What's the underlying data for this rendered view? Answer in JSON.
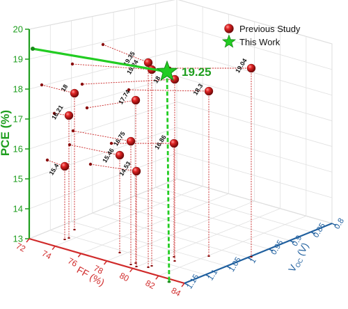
{
  "chart_data": {
    "type": "scatter3d",
    "colors": {
      "previous": "#c81e1e",
      "this_work": "#22cc22",
      "z_axis": "#1e9e1e",
      "x_axis": "#d02a2a",
      "y_axis": "#1f5f9e"
    },
    "z_axis": {
      "label": "PCE (%)",
      "ticks": [
        "13",
        "14",
        "15",
        "16",
        "17",
        "18",
        "19",
        "20"
      ]
    },
    "x_axis": {
      "label": "FF (%)",
      "ticks": [
        "72",
        "74",
        "76",
        "78",
        "80",
        "82",
        "84"
      ]
    },
    "y_axis": {
      "label": "Voc (V)",
      "label_main": "V",
      "label_sub": "OC",
      "label_unit": " (V)",
      "ticks": [
        "1.15",
        "1.1",
        "1.05",
        "1",
        "0.95",
        "0.9",
        "0.85",
        "0.8"
      ]
    },
    "legend": {
      "position": "top-right",
      "items": [
        {
          "name": "Previous Study",
          "marker": "sphere"
        },
        {
          "name": "This Work",
          "marker": "star"
        }
      ]
    },
    "series": [
      {
        "name": "Previous Study",
        "points": [
          {
            "label": "19.35",
            "pce": 19.35
          },
          {
            "label": "19.24",
            "pce": 19.24
          },
          {
            "label": "18",
            "pce": 18.0
          },
          {
            "label": "18",
            "pce": 18.0
          },
          {
            "label": "18.3",
            "pce": 18.3
          },
          {
            "label": "19.04",
            "pce": 19.04
          },
          {
            "label": "17.74",
            "pce": 17.74
          },
          {
            "label": "16.21",
            "pce": 16.21
          },
          {
            "label": "16.75",
            "pce": 16.75
          },
          {
            "label": "15.46",
            "pce": 15.46
          },
          {
            "label": "14.53",
            "pce": 14.53
          },
          {
            "label": "16.86",
            "pce": 16.86
          },
          {
            "label": "15.4",
            "pce": 15.4
          }
        ]
      },
      {
        "name": "This Work",
        "points": [
          {
            "label": "19.25",
            "pce": 19.25
          }
        ]
      }
    ]
  }
}
